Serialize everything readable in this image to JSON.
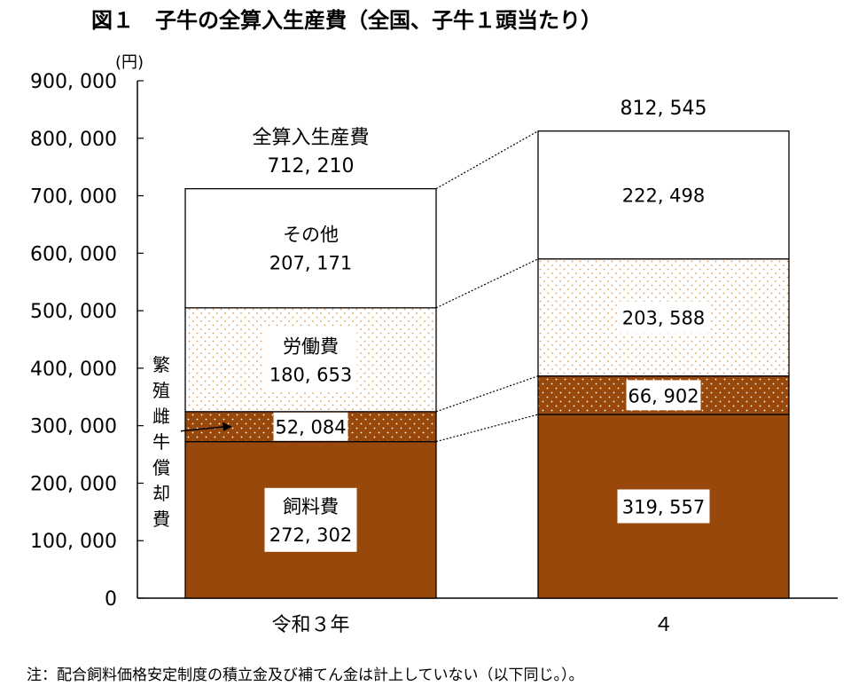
{
  "title": "図１　子牛の全算入生産費（全国、子牛１頭当たり）",
  "note": "注：配合飼料価格安定制度の積立金及び補てん金は計上していない（以下同じ。）。",
  "colors": {
    "feed": "#98480a",
    "breeding": "#98480a",
    "labor_dots": "#e09a55",
    "other": "#ffffff",
    "axis": "#000000",
    "dotted_white": "#ffffff"
  },
  "chart_data": {
    "type": "bar",
    "stacked": true,
    "title": "図１　子牛の全算入生産費（全国、子牛１頭当たり）",
    "unit_label": "(円)",
    "ylim": [
      0,
      900000
    ],
    "y_ticks": [
      "0",
      "100, 000",
      "200, 000",
      "300, 000",
      "400, 000",
      "500, 000",
      "600, 000",
      "700, 000",
      "800, 000",
      "900, 000"
    ],
    "categories": [
      "令和３年",
      "４"
    ],
    "series": [
      {
        "name": "飼料費",
        "values": [
          272302,
          319557
        ],
        "labels": [
          "272, 302",
          "319, 557"
        ]
      },
      {
        "name": "繁殖雌牛償却費",
        "values": [
          52084,
          66902
        ],
        "labels": [
          "52, 084",
          "66, 902"
        ]
      },
      {
        "name": "労働費",
        "values": [
          180653,
          203588
        ],
        "labels": [
          "180, 653",
          "203, 588"
        ]
      },
      {
        "name": "その他",
        "values": [
          207171,
          222498
        ],
        "labels": [
          "207, 171",
          "222, 498"
        ]
      }
    ],
    "totals": [
      712210,
      812545
    ],
    "total_labels": [
      "712, 210",
      "812, 545"
    ],
    "total_name": "全算入生産費",
    "side_label": "繁殖雌牛償却費"
  }
}
